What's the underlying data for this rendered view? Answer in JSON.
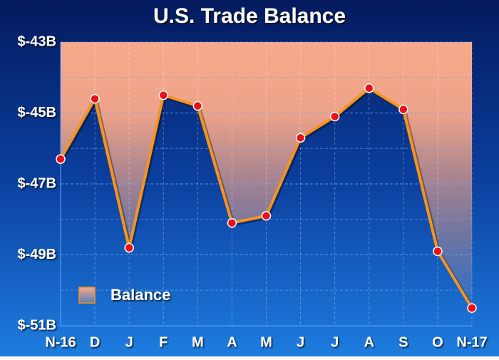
{
  "chart_data": {
    "type": "area-line",
    "title": "U.S. Trade Balance",
    "categories": [
      "N-16",
      "D",
      "J",
      "F",
      "M",
      "A",
      "M",
      "J",
      "J",
      "A",
      "S",
      "O",
      "N-17"
    ],
    "series": [
      {
        "name": "Balance",
        "color": "#f7941d",
        "marker_color": "#e8101a",
        "fill_color": "#f9a98a",
        "values": [
          -46.3,
          -44.6,
          -48.8,
          -44.5,
          -44.8,
          -48.1,
          -47.9,
          -45.7,
          -45.1,
          -44.3,
          -44.9,
          -48.9,
          -50.5
        ]
      }
    ],
    "ylim": [
      -51,
      -43
    ],
    "yticks": [
      {
        "value": -43,
        "label": "$-43B"
      },
      {
        "value": -45,
        "label": "$-45B"
      },
      {
        "value": -47,
        "label": "$-47B"
      },
      {
        "value": -49,
        "label": "$-49B"
      },
      {
        "value": -51,
        "label": "$-51B"
      }
    ],
    "minor_yticks": [
      -44,
      -46,
      -48,
      -50
    ],
    "grid": true,
    "legend": "lower left"
  }
}
